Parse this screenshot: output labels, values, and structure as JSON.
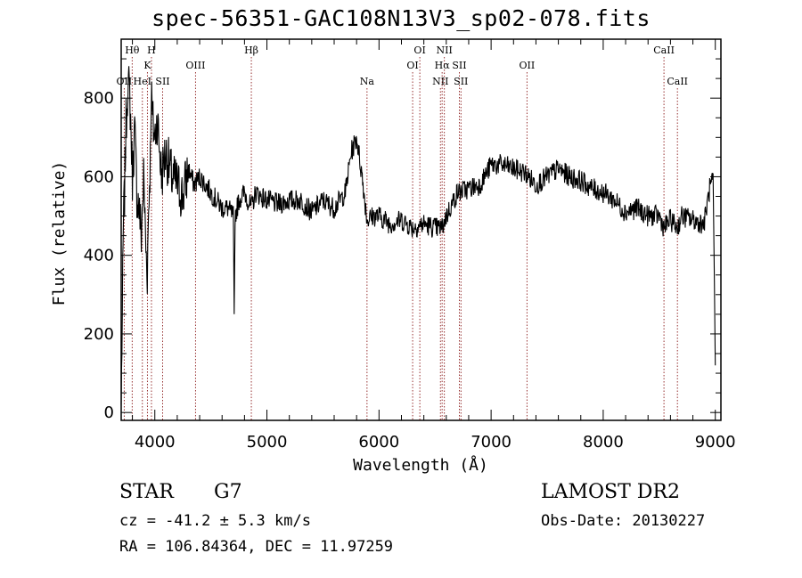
{
  "title": "spec-56351-GAC108N13V3_sp02-078.fits",
  "info": {
    "class_label": "STAR",
    "subclass": "G7",
    "cz": "cz = -41.2 ± 5.3 km/s",
    "radec": "RA = 106.84364, DEC =  11.97259",
    "survey": "LAMOST DR2",
    "obs_date": "Obs-Date: 20130227"
  },
  "colors": {
    "spectrum": "#000000",
    "line_markers": "#8b1a1a",
    "background": "#ffffff"
  },
  "chart_data": {
    "type": "line",
    "title": "spec-56351-GAC108N13V3_sp02-078.fits",
    "xlabel": "Wavelength (Å)",
    "ylabel": "Flux (relative)",
    "xlim": [
      3700,
      9050
    ],
    "ylim": [
      -20,
      950
    ],
    "xticks": [
      4000,
      5000,
      6000,
      7000,
      8000,
      9000
    ],
    "yticks": [
      0,
      200,
      400,
      600,
      800
    ],
    "grid": false,
    "series": [
      {
        "x": [
          3700,
          3710,
          3720,
          3730,
          3740,
          3760,
          3780,
          3800,
          3820,
          3840,
          3860,
          3880,
          3900,
          3920,
          3933,
          3945,
          3960,
          3968,
          3980,
          4000,
          4020,
          4040,
          4060,
          4080,
          4100,
          4150,
          4200,
          4250,
          4300,
          4350,
          4400,
          4500,
          4600,
          4650,
          4700,
          4708,
          4716,
          4750,
          4800,
          4861,
          4900,
          5000,
          5100,
          5200,
          5300,
          5400,
          5500,
          5600,
          5700,
          5750,
          5800,
          5850,
          5893,
          5950,
          6000,
          6100,
          6200,
          6300,
          6400,
          6500,
          6563,
          6600,
          6650,
          6700,
          6800,
          6900,
          7000,
          7100,
          7200,
          7300,
          7400,
          7500,
          7600,
          7700,
          7800,
          7900,
          8000,
          8100,
          8200,
          8300,
          8400,
          8500,
          8542,
          8600,
          8662,
          8700,
          8800,
          8900,
          8950,
          8980,
          9000
        ],
        "y": [
          20,
          250,
          480,
          560,
          700,
          850,
          780,
          600,
          720,
          560,
          520,
          450,
          600,
          420,
          360,
          520,
          650,
          820,
          740,
          700,
          750,
          680,
          600,
          640,
          660,
          600,
          580,
          550,
          620,
          580,
          600,
          560,
          520,
          520,
          500,
          230,
          500,
          540,
          560,
          520,
          560,
          540,
          530,
          540,
          540,
          510,
          540,
          520,
          560,
          660,
          700,
          600,
          490,
          500,
          500,
          480,
          490,
          470,
          480,
          470,
          470,
          500,
          530,
          560,
          570,
          580,
          630,
          630,
          620,
          610,
          580,
          600,
          620,
          600,
          590,
          570,
          560,
          540,
          510,
          520,
          500,
          500,
          470,
          490,
          470,
          500,
          490,
          480,
          570,
          590,
          120
        ]
      }
    ],
    "lines_top": [
      {
        "label": "Hθ",
        "x": 3798,
        "row": 1
      },
      {
        "label": "H",
        "x": 3970,
        "row": 1
      },
      {
        "label": "K",
        "x": 3934,
        "row": 2
      },
      {
        "label": "OII",
        "x": 3727,
        "row": 3
      },
      {
        "label": "HeI",
        "x": 3889,
        "row": 3
      },
      {
        "label": "SII",
        "x": 4070,
        "row": 3
      },
      {
        "label": "OIII",
        "x": 4363,
        "row": 2
      },
      {
        "label": "Hβ",
        "x": 4861,
        "row": 1
      },
      {
        "label": "OI",
        "x": 6364,
        "row": 1
      },
      {
        "label": "NII",
        "x": 6583,
        "row": 1
      },
      {
        "label": "OI",
        "x": 6300,
        "row": 2
      },
      {
        "label": "Hα",
        "x": 6563,
        "row": 2
      },
      {
        "label": "SII",
        "x": 6717,
        "row": 2
      },
      {
        "label": "OII",
        "x": 7320,
        "row": 2
      },
      {
        "label": "CaII",
        "x": 8542,
        "row": 1
      }
    ],
    "lines_bottom": [
      {
        "label": "Na",
        "x": 5893,
        "row": 3
      },
      {
        "label": "NII",
        "x": 6548,
        "row": 3
      },
      {
        "label": "SII",
        "x": 6731,
        "row": 3
      },
      {
        "label": "CaII",
        "x": 8662,
        "row": 3
      }
    ]
  }
}
